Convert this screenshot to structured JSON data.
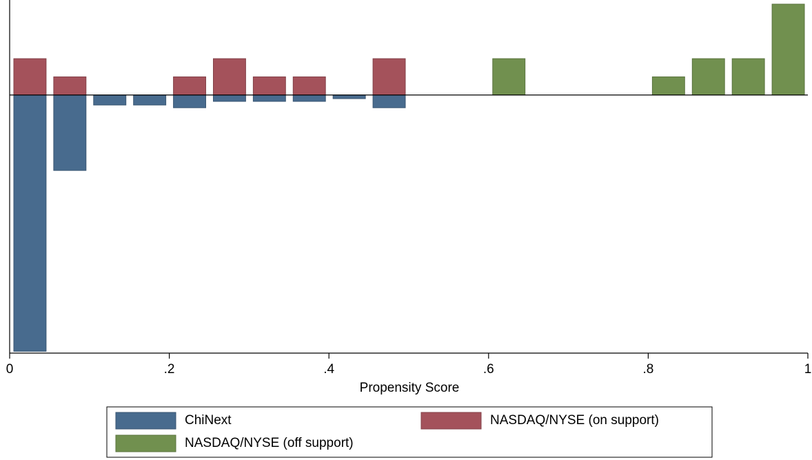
{
  "chart_data": {
    "type": "histogram",
    "x_label": "Propensity Score",
    "bins": [
      0,
      0.05,
      0.1,
      0.15,
      0.2,
      0.25,
      0.3,
      0.35,
      0.4,
      0.45,
      0.5,
      0.55,
      0.6,
      0.65,
      0.7,
      0.75,
      0.8,
      0.85,
      0.9,
      0.95,
      1
    ],
    "series": [
      {
        "name": "ChiNext",
        "color": "#486b8e",
        "values": [
          -14.1,
          -4.15,
          -0.55,
          -0.55,
          -0.7,
          -0.35,
          -0.35,
          -0.35,
          -0.2,
          -0.7,
          0,
          0,
          0,
          0,
          0,
          0,
          0,
          0,
          0,
          0
        ]
      },
      {
        "name": "NASDAQ/NYSE (on support)",
        "color": "#a4525b",
        "values": [
          2,
          1,
          0,
          0,
          1,
          2,
          1,
          1,
          0,
          2,
          0,
          0,
          0,
          0,
          0,
          0,
          0,
          0,
          0,
          0
        ]
      },
      {
        "name": "NASDAQ/NYSE (off support)",
        "color": "#71904f",
        "values": [
          0,
          0,
          0,
          0,
          0,
          0,
          0,
          0,
          0,
          0,
          0,
          0,
          2,
          0,
          0,
          0,
          1,
          2,
          2,
          5
        ]
      }
    ],
    "xlim": [
      0,
      1
    ],
    "xticks": [
      0,
      {
        "value": 0.2,
        "label": ".2"
      },
      {
        "value": 0.4,
        "label": ".4"
      },
      {
        "value": 0.6,
        "label": ".6"
      },
      {
        "value": 0.8,
        "label": ".8"
      },
      1
    ],
    "ylim": [
      -14.2,
      5
    ],
    "legend": "bottom"
  }
}
